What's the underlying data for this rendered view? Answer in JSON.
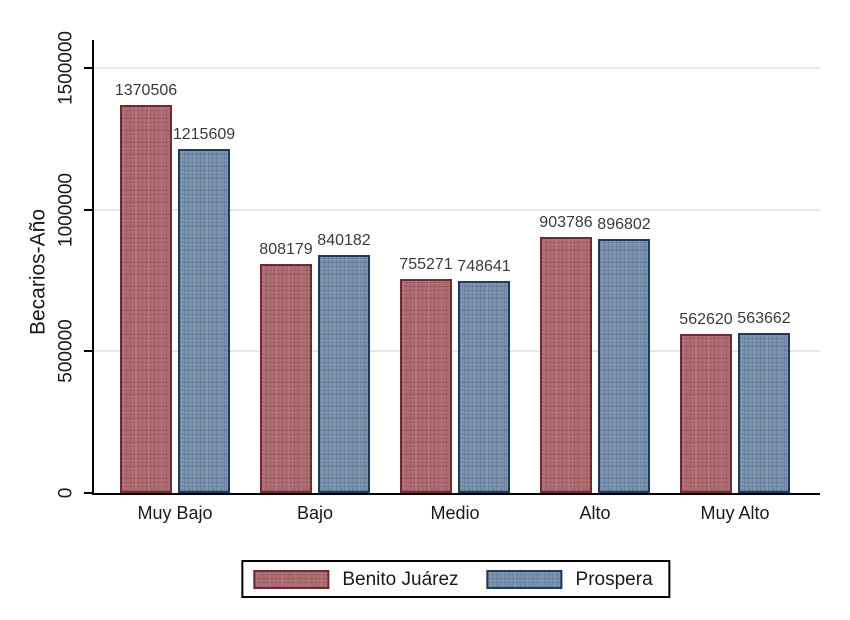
{
  "chart_data": {
    "type": "bar",
    "title": "",
    "xlabel": "",
    "ylabel": "Becarios-Año",
    "categories": [
      "Muy Bajo",
      "Bajo",
      "Medio",
      "Alto",
      "Muy Alto"
    ],
    "series": [
      {
        "name": "Benito Juárez",
        "fill": "#b16e72",
        "border": "#6e2b31",
        "values": [
          1370506,
          808179,
          755271,
          903786,
          562620
        ]
      },
      {
        "name": "Prospera",
        "fill": "#7b93ae",
        "border": "#1f3a5f",
        "values": [
          1215609,
          840182,
          748641,
          896802,
          563662
        ]
      }
    ],
    "bar_value_labels": [
      [
        "1370506",
        "808179",
        "755271",
        "903786",
        "562620"
      ],
      [
        "1215609",
        "840182",
        "748641",
        "896802",
        "563662"
      ]
    ],
    "y_ticks": [
      "0",
      "500000",
      "1000000",
      "1500000"
    ],
    "y_tick_values": [
      0,
      500000,
      1000000,
      1500000
    ],
    "ylim": [
      0,
      1500000
    ],
    "grid": true,
    "gridline_color": "#e6e9ea",
    "axis_color": "#000000",
    "legend_position": "bottom"
  }
}
